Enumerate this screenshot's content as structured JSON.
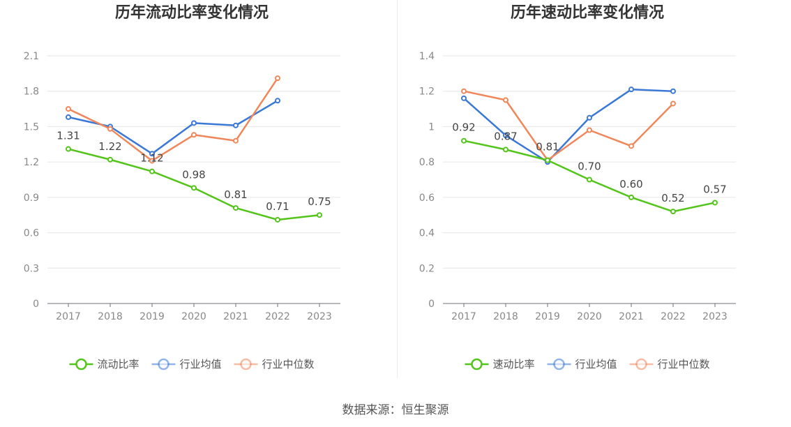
{
  "source_text": "数据来源：恒生聚源",
  "chart_data": [
    {
      "type": "line",
      "title": "历年流动比率变化情况",
      "categories": [
        "2017",
        "2018",
        "2019",
        "2020",
        "2021",
        "2022",
        "2023"
      ],
      "ylim": [
        0,
        2.1
      ],
      "yticks": [
        "0",
        "0.3",
        "0.6",
        "0.9",
        "1.2",
        "1.5",
        "1.8",
        "2.1"
      ],
      "grid": true,
      "legend_position": "bottom",
      "series": [
        {
          "name": "流动比率",
          "color": "#52c41a",
          "labeled": true,
          "values": [
            1.31,
            1.22,
            1.12,
            0.98,
            0.81,
            0.71,
            0.75
          ],
          "labels": [
            "1.31",
            "1.22",
            "1.12",
            "0.98",
            "0.81",
            "0.71",
            "0.75"
          ]
        },
        {
          "name": "行业均值",
          "color": "#3a78d6",
          "labeled": false,
          "values": [
            1.58,
            1.5,
            1.27,
            1.53,
            1.51,
            1.72,
            null
          ]
        },
        {
          "name": "行业中位数",
          "color": "#f0875a",
          "labeled": false,
          "values": [
            1.65,
            1.48,
            1.21,
            1.43,
            1.38,
            1.91,
            null
          ]
        }
      ]
    },
    {
      "type": "line",
      "title": "历年速动比率变化情况",
      "categories": [
        "2017",
        "2018",
        "2019",
        "2020",
        "2021",
        "2022",
        "2023"
      ],
      "ylim": [
        0,
        1.4
      ],
      "yticks": [
        "0",
        "0.2",
        "0.4",
        "0.6",
        "0.8",
        "1",
        "1.2",
        "1.4"
      ],
      "grid": true,
      "legend_position": "bottom",
      "series": [
        {
          "name": "速动比率",
          "color": "#52c41a",
          "labeled": true,
          "values": [
            0.92,
            0.87,
            0.81,
            0.7,
            0.6,
            0.52,
            0.57
          ],
          "labels": [
            "0.92",
            "0.87",
            "0.81",
            "0.70",
            "0.60",
            "0.52",
            "0.57"
          ]
        },
        {
          "name": "行业均值",
          "color": "#3a78d6",
          "labeled": false,
          "values": [
            1.16,
            0.95,
            0.8,
            1.05,
            1.21,
            1.2,
            null
          ]
        },
        {
          "name": "行业中位数",
          "color": "#f0875a",
          "labeled": false,
          "values": [
            1.2,
            1.15,
            0.81,
            0.98,
            0.89,
            1.13,
            null
          ]
        }
      ]
    }
  ]
}
